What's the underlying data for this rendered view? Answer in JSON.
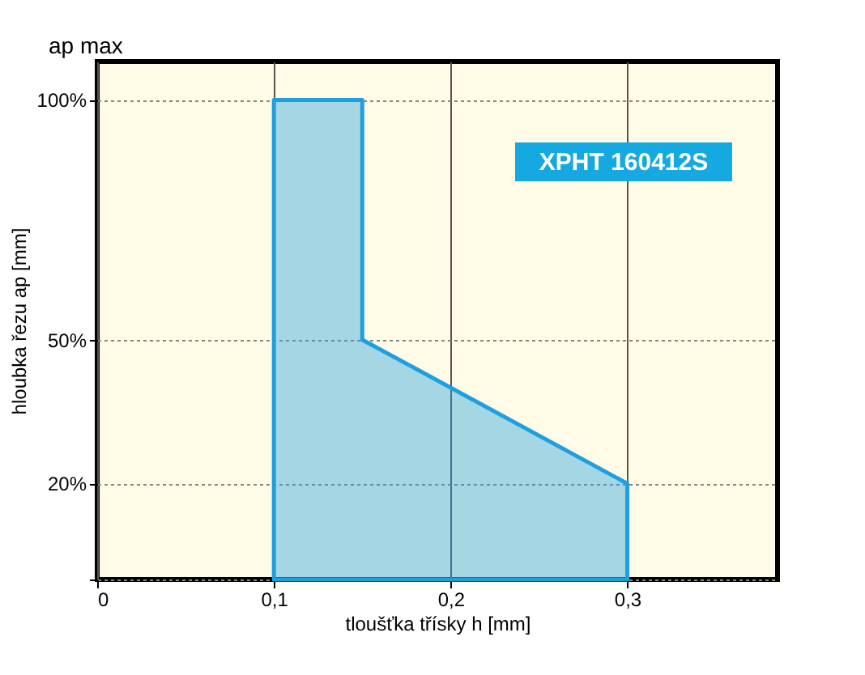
{
  "chart_data": {
    "type": "area",
    "xlabel": "tloušťka třísky h [mm]",
    "ylabel": "hloubka řezu ap [mm]",
    "annotations": [
      "ap max",
      "XPHT 160412S"
    ],
    "x": [
      0.1,
      0.1,
      0.15,
      0.15,
      0.3,
      0.3
    ],
    "series": [
      {
        "color": "#1ea0e0",
        "values": [
          0,
          100,
          100,
          50,
          20,
          0
        ]
      }
    ],
    "xlim": [
      0,
      0.385
    ],
    "ylim": [
      0,
      108
    ],
    "xticks": [
      {
        "value": 0,
        "label": "0"
      },
      {
        "value": 0.1,
        "label": "0,1"
      },
      {
        "value": 0.2,
        "label": "0,2"
      },
      {
        "value": 0.3,
        "label": "0,3"
      }
    ],
    "yticks": [
      {
        "value": 0,
        "label": null
      },
      {
        "value": 20,
        "label": "20%"
      },
      {
        "value": 50,
        "label": "50%"
      },
      {
        "value": 100,
        "label": "100%"
      }
    ],
    "grid": true
  }
}
